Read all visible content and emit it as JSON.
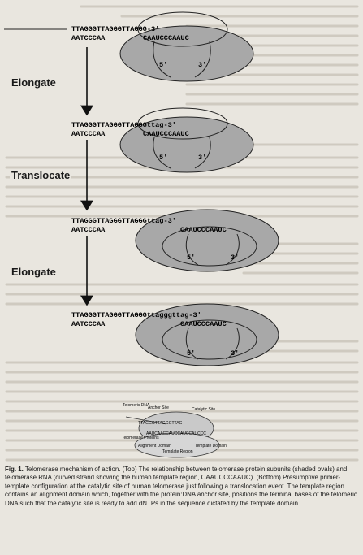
{
  "stages": [
    {
      "top": "TTAGGGTTAGGGTTAGGG-3'",
      "bottom": "AATCCCAA",
      "template": "CAAUCCCAAUC",
      "end5": "5'",
      "end3": "3'"
    },
    {
      "top": "TTAGGGTTAGGGTTAGGGttag-3'",
      "bottom": "AATCCCAA",
      "template": "CAAUCCCAAUC",
      "end5": "5'",
      "end3": "3'"
    },
    {
      "top": "TTAGGGTTAGGGTTAGGGttag-3'",
      "bottom": "AATCCCAA",
      "template": "CAAUCCCAAUC",
      "end5": "5'",
      "end3": "3'"
    },
    {
      "top": "TTAGGGTTAGGGTTAGGGttagggttag-3'",
      "bottom": "AATCCCAA",
      "template": "CAAUCCCAAUC",
      "end5": "5'",
      "end3": "3'"
    }
  ],
  "steps": [
    "Elongate",
    "Translocate",
    "Elongate"
  ],
  "inset": {
    "labels": [
      "Telomeric DNA",
      "Anchor Site",
      "Catalytic Site",
      "Telomerase Proteins",
      "Alignment Domain",
      "Template Domain",
      "Template Region"
    ],
    "top_strand": "TTAGGGTTAGGGTTAG",
    "rna": "AAUCAACCAUCCAUCCAUCCC"
  },
  "caption": {
    "label": "Fig. 1.",
    "text": "Telomerase mechanism of action. (Top) The relationship between telomerase protein subunits (shaded ovals) and telomerase RNA (curved strand showing the human template region, CAAUCCCAAUC). (Bottom) Presumptive primer-template configuration at the catalytic site of human telomerase just following a translocation event. The template region contains an alignment domain which, together with the protein:DNA anchor site, positions the terminal bases of the telomeric DNA such that the catalytic site is ready to add dNTPs in the sequence dictated by the template domain"
  }
}
